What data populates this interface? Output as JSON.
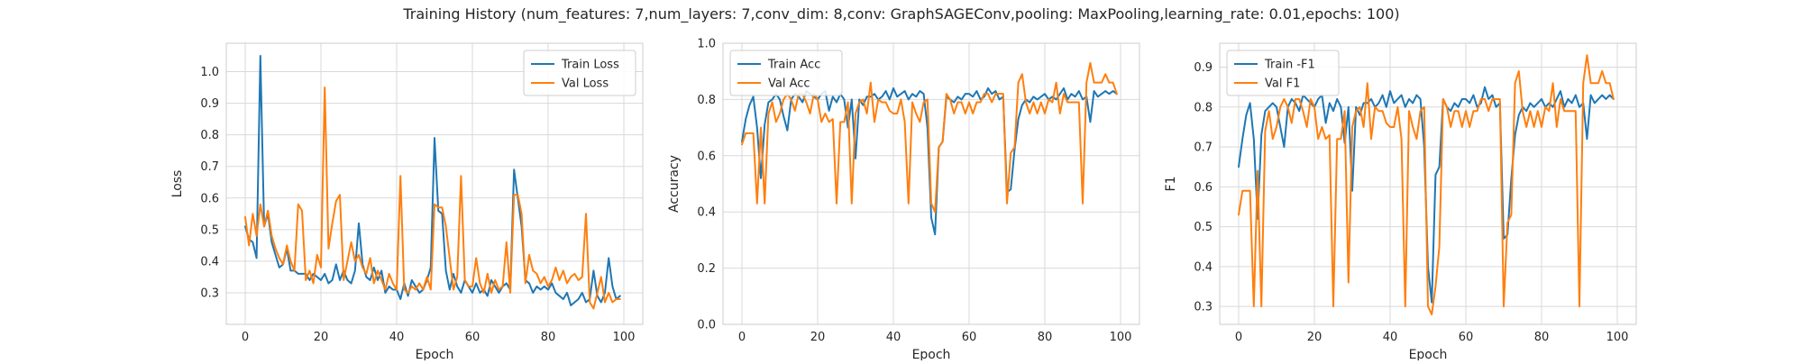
{
  "figure": {
    "title": "Training History (num_features: 7,num_layers: 7,conv_dim: 8,conv: GraphSAGEConv,pooling: MaxPooling,learning_rate: 0.01,epochs: 100)"
  },
  "colors": {
    "train": "#1f77b4",
    "val": "#ff7f0e",
    "grid": "#d9d9d9",
    "axes_edge": "#cccccc",
    "text": "#262626"
  },
  "chart_data": [
    {
      "type": "line",
      "xlabel": "Epoch",
      "ylabel": "Loss",
      "xlim": [
        -5,
        105
      ],
      "ylim": [
        0.2,
        1.09
      ],
      "xticks": [
        0,
        20,
        40,
        60,
        80,
        100
      ],
      "yticks": [
        0.3,
        0.4,
        0.5,
        0.6,
        0.7,
        0.8,
        0.9,
        1.0
      ],
      "ytick_labels": [
        "0.3",
        "0.4",
        "0.5",
        "0.6",
        "0.7",
        "0.8",
        "0.9",
        "1.0"
      ],
      "grid": true,
      "legend": "top-right",
      "series": [
        {
          "name": "Train Loss",
          "color": "#1f77b4",
          "values": [
            0.51,
            0.47,
            0.46,
            0.41,
            1.05,
            0.51,
            0.55,
            0.46,
            0.42,
            0.38,
            0.39,
            0.44,
            0.37,
            0.37,
            0.36,
            0.36,
            0.36,
            0.34,
            0.36,
            0.35,
            0.34,
            0.36,
            0.33,
            0.34,
            0.39,
            0.34,
            0.37,
            0.34,
            0.33,
            0.37,
            0.52,
            0.39,
            0.35,
            0.34,
            0.38,
            0.34,
            0.37,
            0.3,
            0.32,
            0.31,
            0.31,
            0.28,
            0.33,
            0.29,
            0.34,
            0.32,
            0.3,
            0.31,
            0.34,
            0.38,
            0.79,
            0.56,
            0.55,
            0.37,
            0.31,
            0.36,
            0.32,
            0.3,
            0.34,
            0.32,
            0.3,
            0.33,
            0.3,
            0.31,
            0.29,
            0.34,
            0.32,
            0.3,
            0.32,
            0.33,
            0.31,
            0.69,
            0.6,
            0.51,
            0.34,
            0.33,
            0.3,
            0.32,
            0.31,
            0.32,
            0.31,
            0.33,
            0.3,
            0.29,
            0.28,
            0.3,
            0.26,
            0.27,
            0.28,
            0.3,
            0.27,
            0.28,
            0.37,
            0.29,
            0.27,
            0.3,
            0.41,
            0.32,
            0.28,
            0.29
          ]
        },
        {
          "name": "Val Loss",
          "color": "#ff7f0e",
          "values": [
            0.54,
            0.45,
            0.55,
            0.48,
            0.58,
            0.51,
            0.56,
            0.48,
            0.44,
            0.41,
            0.39,
            0.45,
            0.4,
            0.37,
            0.58,
            0.56,
            0.34,
            0.37,
            0.33,
            0.42,
            0.38,
            0.95,
            0.44,
            0.52,
            0.59,
            0.61,
            0.34,
            0.4,
            0.46,
            0.4,
            0.42,
            0.38,
            0.36,
            0.41,
            0.33,
            0.37,
            0.34,
            0.31,
            0.36,
            0.33,
            0.31,
            0.67,
            0.31,
            0.3,
            0.32,
            0.31,
            0.33,
            0.31,
            0.35,
            0.31,
            0.58,
            0.57,
            0.57,
            0.51,
            0.41,
            0.31,
            0.35,
            0.67,
            0.34,
            0.32,
            0.32,
            0.41,
            0.33,
            0.3,
            0.36,
            0.3,
            0.34,
            0.31,
            0.32,
            0.46,
            0.3,
            0.61,
            0.61,
            0.55,
            0.33,
            0.42,
            0.37,
            0.36,
            0.33,
            0.35,
            0.32,
            0.34,
            0.38,
            0.34,
            0.37,
            0.33,
            0.35,
            0.36,
            0.34,
            0.35,
            0.55,
            0.27,
            0.25,
            0.3,
            0.35,
            0.27,
            0.3,
            0.27,
            0.28,
            0.28
          ]
        }
      ]
    },
    {
      "type": "line",
      "xlabel": "Epoch",
      "ylabel": "Accuracy",
      "xlim": [
        -5,
        105
      ],
      "ylim": [
        0.0,
        1.0
      ],
      "xticks": [
        0,
        20,
        40,
        60,
        80,
        100
      ],
      "yticks": [
        0.0,
        0.2,
        0.4,
        0.6,
        0.8,
        1.0
      ],
      "ytick_labels": [
        "0.0",
        "0.2",
        "0.4",
        "0.6",
        "0.8",
        "1.0"
      ],
      "grid": true,
      "legend": "top-left",
      "series": [
        {
          "name": "Train Acc",
          "color": "#1f77b4",
          "values": [
            0.65,
            0.73,
            0.78,
            0.81,
            0.7,
            0.52,
            0.71,
            0.79,
            0.8,
            0.82,
            0.8,
            0.74,
            0.69,
            0.8,
            0.82,
            0.81,
            0.79,
            0.83,
            0.82,
            0.81,
            0.8,
            0.82,
            0.83,
            0.76,
            0.81,
            0.79,
            0.82,
            0.8,
            0.7,
            0.8,
            0.59,
            0.8,
            0.78,
            0.81,
            0.81,
            0.82,
            0.8,
            0.81,
            0.83,
            0.8,
            0.84,
            0.81,
            0.82,
            0.83,
            0.8,
            0.82,
            0.81,
            0.83,
            0.82,
            0.7,
            0.38,
            0.32,
            0.63,
            0.65,
            0.81,
            0.8,
            0.79,
            0.81,
            0.8,
            0.82,
            0.82,
            0.81,
            0.83,
            0.8,
            0.81,
            0.84,
            0.82,
            0.83,
            0.8,
            0.81,
            0.47,
            0.48,
            0.62,
            0.73,
            0.78,
            0.8,
            0.79,
            0.81,
            0.8,
            0.81,
            0.82,
            0.8,
            0.81,
            0.8,
            0.82,
            0.84,
            0.8,
            0.82,
            0.81,
            0.83,
            0.8,
            0.81,
            0.72,
            0.83,
            0.81,
            0.82,
            0.83,
            0.82,
            0.83,
            0.82
          ]
        },
        {
          "name": "Val Acc",
          "color": "#ff7f0e",
          "values": [
            0.64,
            0.68,
            0.68,
            0.68,
            0.43,
            0.7,
            0.43,
            0.75,
            0.79,
            0.72,
            0.75,
            0.8,
            0.82,
            0.8,
            0.76,
            0.82,
            0.82,
            0.79,
            0.75,
            0.82,
            0.8,
            0.72,
            0.75,
            0.72,
            0.73,
            0.43,
            0.72,
            0.72,
            0.79,
            0.43,
            0.75,
            0.79,
            0.8,
            0.75,
            0.86,
            0.72,
            0.8,
            0.79,
            0.79,
            0.76,
            0.75,
            0.75,
            0.8,
            0.72,
            0.43,
            0.79,
            0.75,
            0.72,
            0.79,
            0.8,
            0.43,
            0.4,
            0.63,
            0.65,
            0.82,
            0.8,
            0.75,
            0.79,
            0.79,
            0.75,
            0.79,
            0.75,
            0.79,
            0.79,
            0.82,
            0.82,
            0.79,
            0.82,
            0.82,
            0.82,
            0.43,
            0.61,
            0.63,
            0.86,
            0.89,
            0.79,
            0.75,
            0.79,
            0.75,
            0.79,
            0.75,
            0.8,
            0.79,
            0.86,
            0.75,
            0.82,
            0.79,
            0.79,
            0.79,
            0.79,
            0.43,
            0.86,
            0.93,
            0.86,
            0.86,
            0.86,
            0.89,
            0.86,
            0.86,
            0.82
          ]
        }
      ]
    },
    {
      "type": "line",
      "xlabel": "Epoch",
      "ylabel": "F1",
      "xlim": [
        -5,
        105
      ],
      "ylim": [
        0.255,
        0.96
      ],
      "xticks": [
        0,
        20,
        40,
        60,
        80,
        100
      ],
      "yticks": [
        0.3,
        0.4,
        0.5,
        0.6,
        0.7,
        0.8,
        0.9
      ],
      "ytick_labels": [
        "0.3",
        "0.4",
        "0.5",
        "0.6",
        "0.7",
        "0.8",
        "0.9"
      ],
      "grid": true,
      "legend": "top-left",
      "series": [
        {
          "name": "Train -F1",
          "color": "#1f77b4",
          "values": [
            0.65,
            0.72,
            0.78,
            0.81,
            0.72,
            0.52,
            0.73,
            0.79,
            0.8,
            0.81,
            0.8,
            0.75,
            0.7,
            0.8,
            0.82,
            0.81,
            0.79,
            0.83,
            0.82,
            0.81,
            0.8,
            0.82,
            0.83,
            0.76,
            0.81,
            0.79,
            0.82,
            0.8,
            0.71,
            0.8,
            0.59,
            0.8,
            0.78,
            0.81,
            0.81,
            0.82,
            0.8,
            0.81,
            0.83,
            0.8,
            0.84,
            0.81,
            0.82,
            0.83,
            0.8,
            0.82,
            0.81,
            0.83,
            0.82,
            0.7,
            0.4,
            0.31,
            0.63,
            0.65,
            0.82,
            0.8,
            0.79,
            0.81,
            0.8,
            0.82,
            0.82,
            0.81,
            0.83,
            0.8,
            0.81,
            0.85,
            0.82,
            0.83,
            0.8,
            0.81,
            0.47,
            0.48,
            0.62,
            0.73,
            0.78,
            0.8,
            0.79,
            0.81,
            0.8,
            0.81,
            0.82,
            0.8,
            0.81,
            0.8,
            0.82,
            0.84,
            0.8,
            0.82,
            0.81,
            0.83,
            0.8,
            0.81,
            0.72,
            0.83,
            0.81,
            0.82,
            0.83,
            0.82,
            0.83,
            0.82
          ]
        },
        {
          "name": "Val F1",
          "color": "#ff7f0e",
          "values": [
            0.53,
            0.59,
            0.59,
            0.59,
            0.3,
            0.64,
            0.3,
            0.74,
            0.79,
            0.72,
            0.75,
            0.8,
            0.82,
            0.8,
            0.76,
            0.82,
            0.82,
            0.79,
            0.75,
            0.82,
            0.8,
            0.72,
            0.75,
            0.72,
            0.73,
            0.3,
            0.72,
            0.72,
            0.79,
            0.36,
            0.75,
            0.79,
            0.8,
            0.75,
            0.86,
            0.72,
            0.8,
            0.79,
            0.79,
            0.76,
            0.75,
            0.75,
            0.8,
            0.72,
            0.3,
            0.79,
            0.75,
            0.72,
            0.79,
            0.8,
            0.3,
            0.28,
            0.35,
            0.45,
            0.82,
            0.8,
            0.75,
            0.79,
            0.79,
            0.75,
            0.79,
            0.75,
            0.79,
            0.79,
            0.82,
            0.82,
            0.79,
            0.82,
            0.82,
            0.82,
            0.3,
            0.51,
            0.53,
            0.86,
            0.89,
            0.79,
            0.75,
            0.79,
            0.75,
            0.79,
            0.75,
            0.8,
            0.79,
            0.86,
            0.75,
            0.82,
            0.79,
            0.79,
            0.79,
            0.79,
            0.3,
            0.86,
            0.93,
            0.86,
            0.86,
            0.86,
            0.89,
            0.86,
            0.86,
            0.82
          ]
        }
      ]
    }
  ]
}
